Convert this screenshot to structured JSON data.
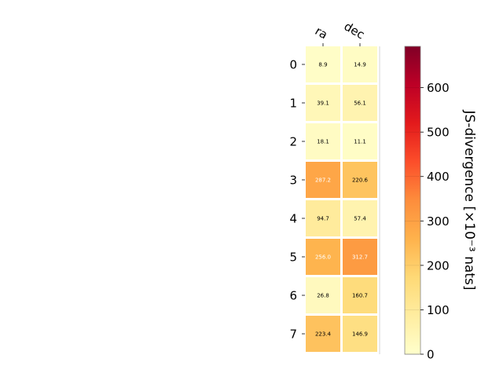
{
  "chart_data": {
    "type": "heatmap",
    "title": "",
    "x_categories": [
      "ra",
      "dec"
    ],
    "y_categories": [
      "0",
      "1",
      "2",
      "3",
      "4",
      "5",
      "6",
      "7"
    ],
    "values": [
      [
        8.9,
        14.9
      ],
      [
        39.1,
        56.1
      ],
      [
        18.1,
        11.1
      ],
      [
        287.2,
        220.6
      ],
      [
        94.7,
        57.4
      ],
      [
        256.0,
        312.7
      ],
      [
        26.8,
        160.7
      ],
      [
        223.4,
        146.9
      ]
    ],
    "labels": [
      [
        "8.9",
        "14.9"
      ],
      [
        "39.1",
        "56.1"
      ],
      [
        "18.1",
        "11.1"
      ],
      [
        "287.2",
        "220.6"
      ],
      [
        "94.7",
        "57.4"
      ],
      [
        "256.0",
        "312.7"
      ],
      [
        "26.8",
        "160.7"
      ],
      [
        "223.4",
        "146.9"
      ]
    ],
    "colormap": "YlOrRd",
    "colorbar": {
      "label": "JS-divergence [×10⁻³ nats]",
      "range": [
        0,
        693
      ],
      "ticks": [
        0,
        100,
        200,
        300,
        400,
        500,
        600
      ],
      "tick_labels": [
        "0",
        "100",
        "200",
        "300",
        "400",
        "500",
        "600"
      ]
    },
    "grid": false
  }
}
